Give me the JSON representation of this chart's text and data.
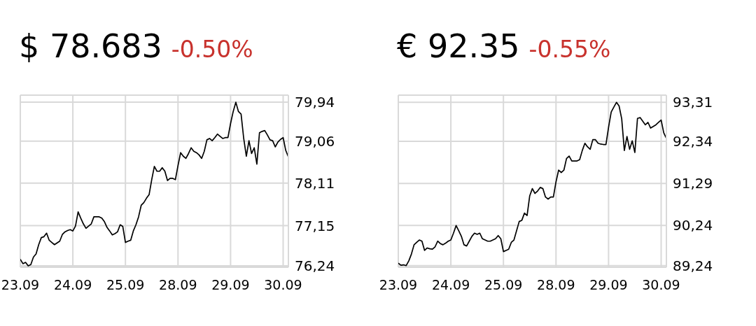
{
  "chart_data": [
    {
      "type": "line",
      "title": "$ 78.683",
      "subtitle": "-0.50%",
      "color": "#000000",
      "grid": true,
      "categories": [
        "23.09",
        null,
        null,
        null,
        null,
        null,
        null,
        null,
        null,
        null,
        null,
        null,
        null,
        null,
        null,
        null,
        null,
        null,
        null,
        null,
        "24.09",
        null,
        null,
        null,
        null,
        null,
        null,
        null,
        null,
        null,
        null,
        null,
        null,
        null,
        null,
        null,
        null,
        null,
        null,
        null,
        "25.09",
        null,
        null,
        null,
        null,
        null,
        null,
        null,
        null,
        null,
        null,
        null,
        null,
        null,
        null,
        null,
        null,
        null,
        null,
        null,
        "28.09",
        null,
        null,
        null,
        null,
        null,
        null,
        null,
        null,
        null,
        null,
        null,
        null,
        null,
        null,
        null,
        null,
        null,
        null,
        null,
        "29.09",
        null,
        null,
        null,
        null,
        null,
        null,
        null,
        null,
        null,
        null,
        null,
        null,
        null,
        null,
        null,
        null,
        null,
        null,
        null,
        "30.09",
        null,
        null
      ],
      "ylim": [
        76.21,
        80.1
      ],
      "yticks": [
        {
          "value": 76.24,
          "label": "76,24"
        },
        {
          "value": 77.15,
          "label": "77,15"
        },
        {
          "value": 78.11,
          "label": "78,11"
        },
        {
          "value": 79.06,
          "label": "79,06"
        },
        {
          "value": 79.94,
          "label": "79,94"
        }
      ],
      "values": [
        76.39,
        76.29,
        76.32,
        76.24,
        76.27,
        76.44,
        76.51,
        76.72,
        76.88,
        76.9,
        76.98,
        76.82,
        76.77,
        76.72,
        76.76,
        76.8,
        76.95,
        77.01,
        77.04,
        77.06,
        77.03,
        77.14,
        77.46,
        77.32,
        77.19,
        77.09,
        77.14,
        77.19,
        77.35,
        77.35,
        77.35,
        77.32,
        77.24,
        77.11,
        77.03,
        76.94,
        76.97,
        77.01,
        77.17,
        77.13,
        76.77,
        76.8,
        76.82,
        77.03,
        77.17,
        77.35,
        77.61,
        77.67,
        77.77,
        77.85,
        78.19,
        78.49,
        78.38,
        78.38,
        78.46,
        78.38,
        78.17,
        78.22,
        78.22,
        78.19,
        78.51,
        78.8,
        78.72,
        78.67,
        78.78,
        78.91,
        78.83,
        78.8,
        78.75,
        78.67,
        78.83,
        79.09,
        79.12,
        79.07,
        79.14,
        79.22,
        79.17,
        79.12,
        79.14,
        79.14,
        79.46,
        79.73,
        79.94,
        79.73,
        79.67,
        79.12,
        78.72,
        79.07,
        78.78,
        78.91,
        78.54,
        79.25,
        79.28,
        79.3,
        79.2,
        79.09,
        79.07,
        78.93,
        79.04,
        79.1,
        79.14,
        78.85,
        78.7
      ]
    },
    {
      "type": "line",
      "title": "€ 92.35",
      "subtitle": "-0.55%",
      "color": "#000000",
      "grid": true,
      "categories": [
        "23.09",
        null,
        null,
        null,
        null,
        null,
        null,
        null,
        null,
        null,
        null,
        null,
        null,
        null,
        null,
        null,
        null,
        null,
        null,
        null,
        "24.09",
        null,
        null,
        null,
        null,
        null,
        null,
        null,
        null,
        null,
        null,
        null,
        null,
        null,
        null,
        null,
        null,
        null,
        null,
        null,
        "25.09",
        null,
        null,
        null,
        null,
        null,
        null,
        null,
        null,
        null,
        null,
        null,
        null,
        null,
        null,
        null,
        null,
        null,
        null,
        null,
        "28.09",
        null,
        null,
        null,
        null,
        null,
        null,
        null,
        null,
        null,
        null,
        null,
        null,
        null,
        null,
        null,
        null,
        null,
        null,
        null,
        "29.09",
        null,
        null,
        null,
        null,
        null,
        null,
        null,
        null,
        null,
        null,
        null,
        null,
        null,
        null,
        null,
        null,
        null,
        null,
        null,
        "30.09",
        null,
        null
      ],
      "ylim": [
        89.2,
        93.49
      ],
      "yticks": [
        {
          "value": 89.24,
          "label": "89,24"
        },
        {
          "value": 90.24,
          "label": "90,24"
        },
        {
          "value": 91.29,
          "label": "91,29"
        },
        {
          "value": 92.34,
          "label": "92,34"
        },
        {
          "value": 93.31,
          "label": "93,31"
        }
      ],
      "values": [
        89.3,
        89.25,
        89.26,
        89.24,
        89.36,
        89.53,
        89.76,
        89.82,
        89.88,
        89.85,
        89.62,
        89.68,
        89.66,
        89.65,
        89.71,
        89.85,
        89.79,
        89.76,
        89.8,
        89.85,
        89.88,
        90.05,
        90.24,
        90.11,
        89.97,
        89.76,
        89.73,
        89.85,
        89.97,
        90.05,
        90.02,
        90.05,
        89.91,
        89.88,
        89.85,
        89.85,
        89.88,
        89.91,
        89.99,
        89.91,
        89.59,
        89.62,
        89.65,
        89.82,
        89.88,
        90.11,
        90.34,
        90.37,
        90.55,
        90.49,
        90.98,
        91.16,
        91.04,
        91.1,
        91.19,
        91.16,
        90.95,
        90.9,
        90.95,
        90.95,
        91.33,
        91.62,
        91.56,
        91.62,
        91.91,
        91.97,
        91.85,
        91.85,
        91.85,
        91.88,
        92.11,
        92.29,
        92.2,
        92.14,
        92.38,
        92.38,
        92.29,
        92.27,
        92.26,
        92.26,
        92.69,
        93.07,
        93.19,
        93.31,
        93.22,
        92.9,
        92.11,
        92.46,
        92.14,
        92.35,
        92.06,
        92.91,
        92.93,
        92.84,
        92.75,
        92.81,
        92.67,
        92.71,
        92.75,
        92.81,
        92.87,
        92.55,
        92.41
      ]
    }
  ]
}
